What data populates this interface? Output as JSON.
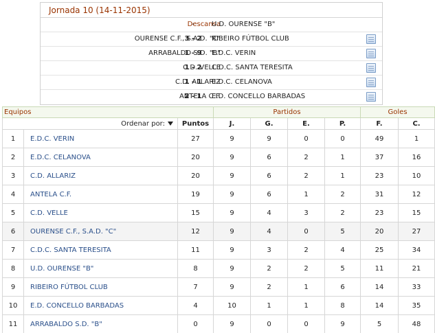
{
  "jornada": {
    "title": "Jornada 10 (14-11-2015)",
    "matches": [
      {
        "home": "Descansa",
        "score": "-",
        "away": "U.D. OURENSE \"B\"",
        "rest": true
      },
      {
        "home": "OURENSE C.F., S.A.D. \"C\"",
        "score": "3 - 2",
        "away": "RIBEIRO FÚTBOL CLUB",
        "rest": false
      },
      {
        "home": "ARRABALDO S.D. \"B\"",
        "score": "1 - 9",
        "away": "E.D.C. VERIN",
        "rest": false
      },
      {
        "home": "C.D. VELLE",
        "score": "1 - 2",
        "away": "C.D.C. SANTA TERESITA",
        "rest": false
      },
      {
        "home": "C.D. ALLARIZ",
        "score": "1 - 1",
        "away": "E.D.C. CELANOVA",
        "rest": false
      },
      {
        "home": "ANTELA C.F.",
        "score": "2 - 1",
        "away": "E.D. CONCELLO BARBADAS",
        "rest": false
      }
    ],
    "doc_icon": "document-icon"
  },
  "table": {
    "group_headers": {
      "equipos": "Equipos",
      "partidos": "Partidos",
      "goles": "Goles"
    },
    "order_label": "Ordenar por:",
    "sort_icon": "sort-down-triangle-icon",
    "columns": {
      "puntos": "Puntos",
      "j": "J.",
      "g": "G.",
      "e": "E.",
      "p": "P.",
      "f": "F.",
      "c": "C."
    },
    "rows": [
      {
        "pos": "1",
        "team": "E.D.C. VERIN",
        "pts": "27",
        "j": "9",
        "g": "9",
        "e": "0",
        "p": "0",
        "f": "49",
        "c": "1"
      },
      {
        "pos": "2",
        "team": "E.D.C. CELANOVA",
        "pts": "20",
        "j": "9",
        "g": "6",
        "e": "2",
        "p": "1",
        "f": "37",
        "c": "16"
      },
      {
        "pos": "3",
        "team": "C.D. ALLARIZ",
        "pts": "20",
        "j": "9",
        "g": "6",
        "e": "2",
        "p": "1",
        "f": "23",
        "c": "10"
      },
      {
        "pos": "4",
        "team": "ANTELA C.F.",
        "pts": "19",
        "j": "9",
        "g": "6",
        "e": "1",
        "p": "2",
        "f": "31",
        "c": "12"
      },
      {
        "pos": "5",
        "team": "C.D. VELLE",
        "pts": "15",
        "j": "9",
        "g": "4",
        "e": "3",
        "p": "2",
        "f": "23",
        "c": "15"
      },
      {
        "pos": "6",
        "team": "OURENSE C.F., S.A.D. \"C\"",
        "pts": "12",
        "j": "9",
        "g": "4",
        "e": "0",
        "p": "5",
        "f": "20",
        "c": "27",
        "highlight": true
      },
      {
        "pos": "7",
        "team": "C.D.C. SANTA TERESITA",
        "pts": "11",
        "j": "9",
        "g": "3",
        "e": "2",
        "p": "4",
        "f": "25",
        "c": "34"
      },
      {
        "pos": "8",
        "team": "U.D. OURENSE \"B\"",
        "pts": "8",
        "j": "9",
        "g": "2",
        "e": "2",
        "p": "5",
        "f": "11",
        "c": "21"
      },
      {
        "pos": "9",
        "team": "RIBEIRO FÚTBOL CLUB",
        "pts": "7",
        "j": "9",
        "g": "2",
        "e": "1",
        "p": "6",
        "f": "14",
        "c": "33"
      },
      {
        "pos": "10",
        "team": "E.D. CONCELLO BARBADAS",
        "pts": "4",
        "j": "10",
        "g": "1",
        "e": "1",
        "p": "8",
        "f": "14",
        "c": "35"
      },
      {
        "pos": "11",
        "team": "ARRABALDO S.D. \"B\"",
        "pts": "0",
        "j": "9",
        "g": "0",
        "e": "0",
        "p": "9",
        "f": "5",
        "c": "48"
      }
    ]
  }
}
